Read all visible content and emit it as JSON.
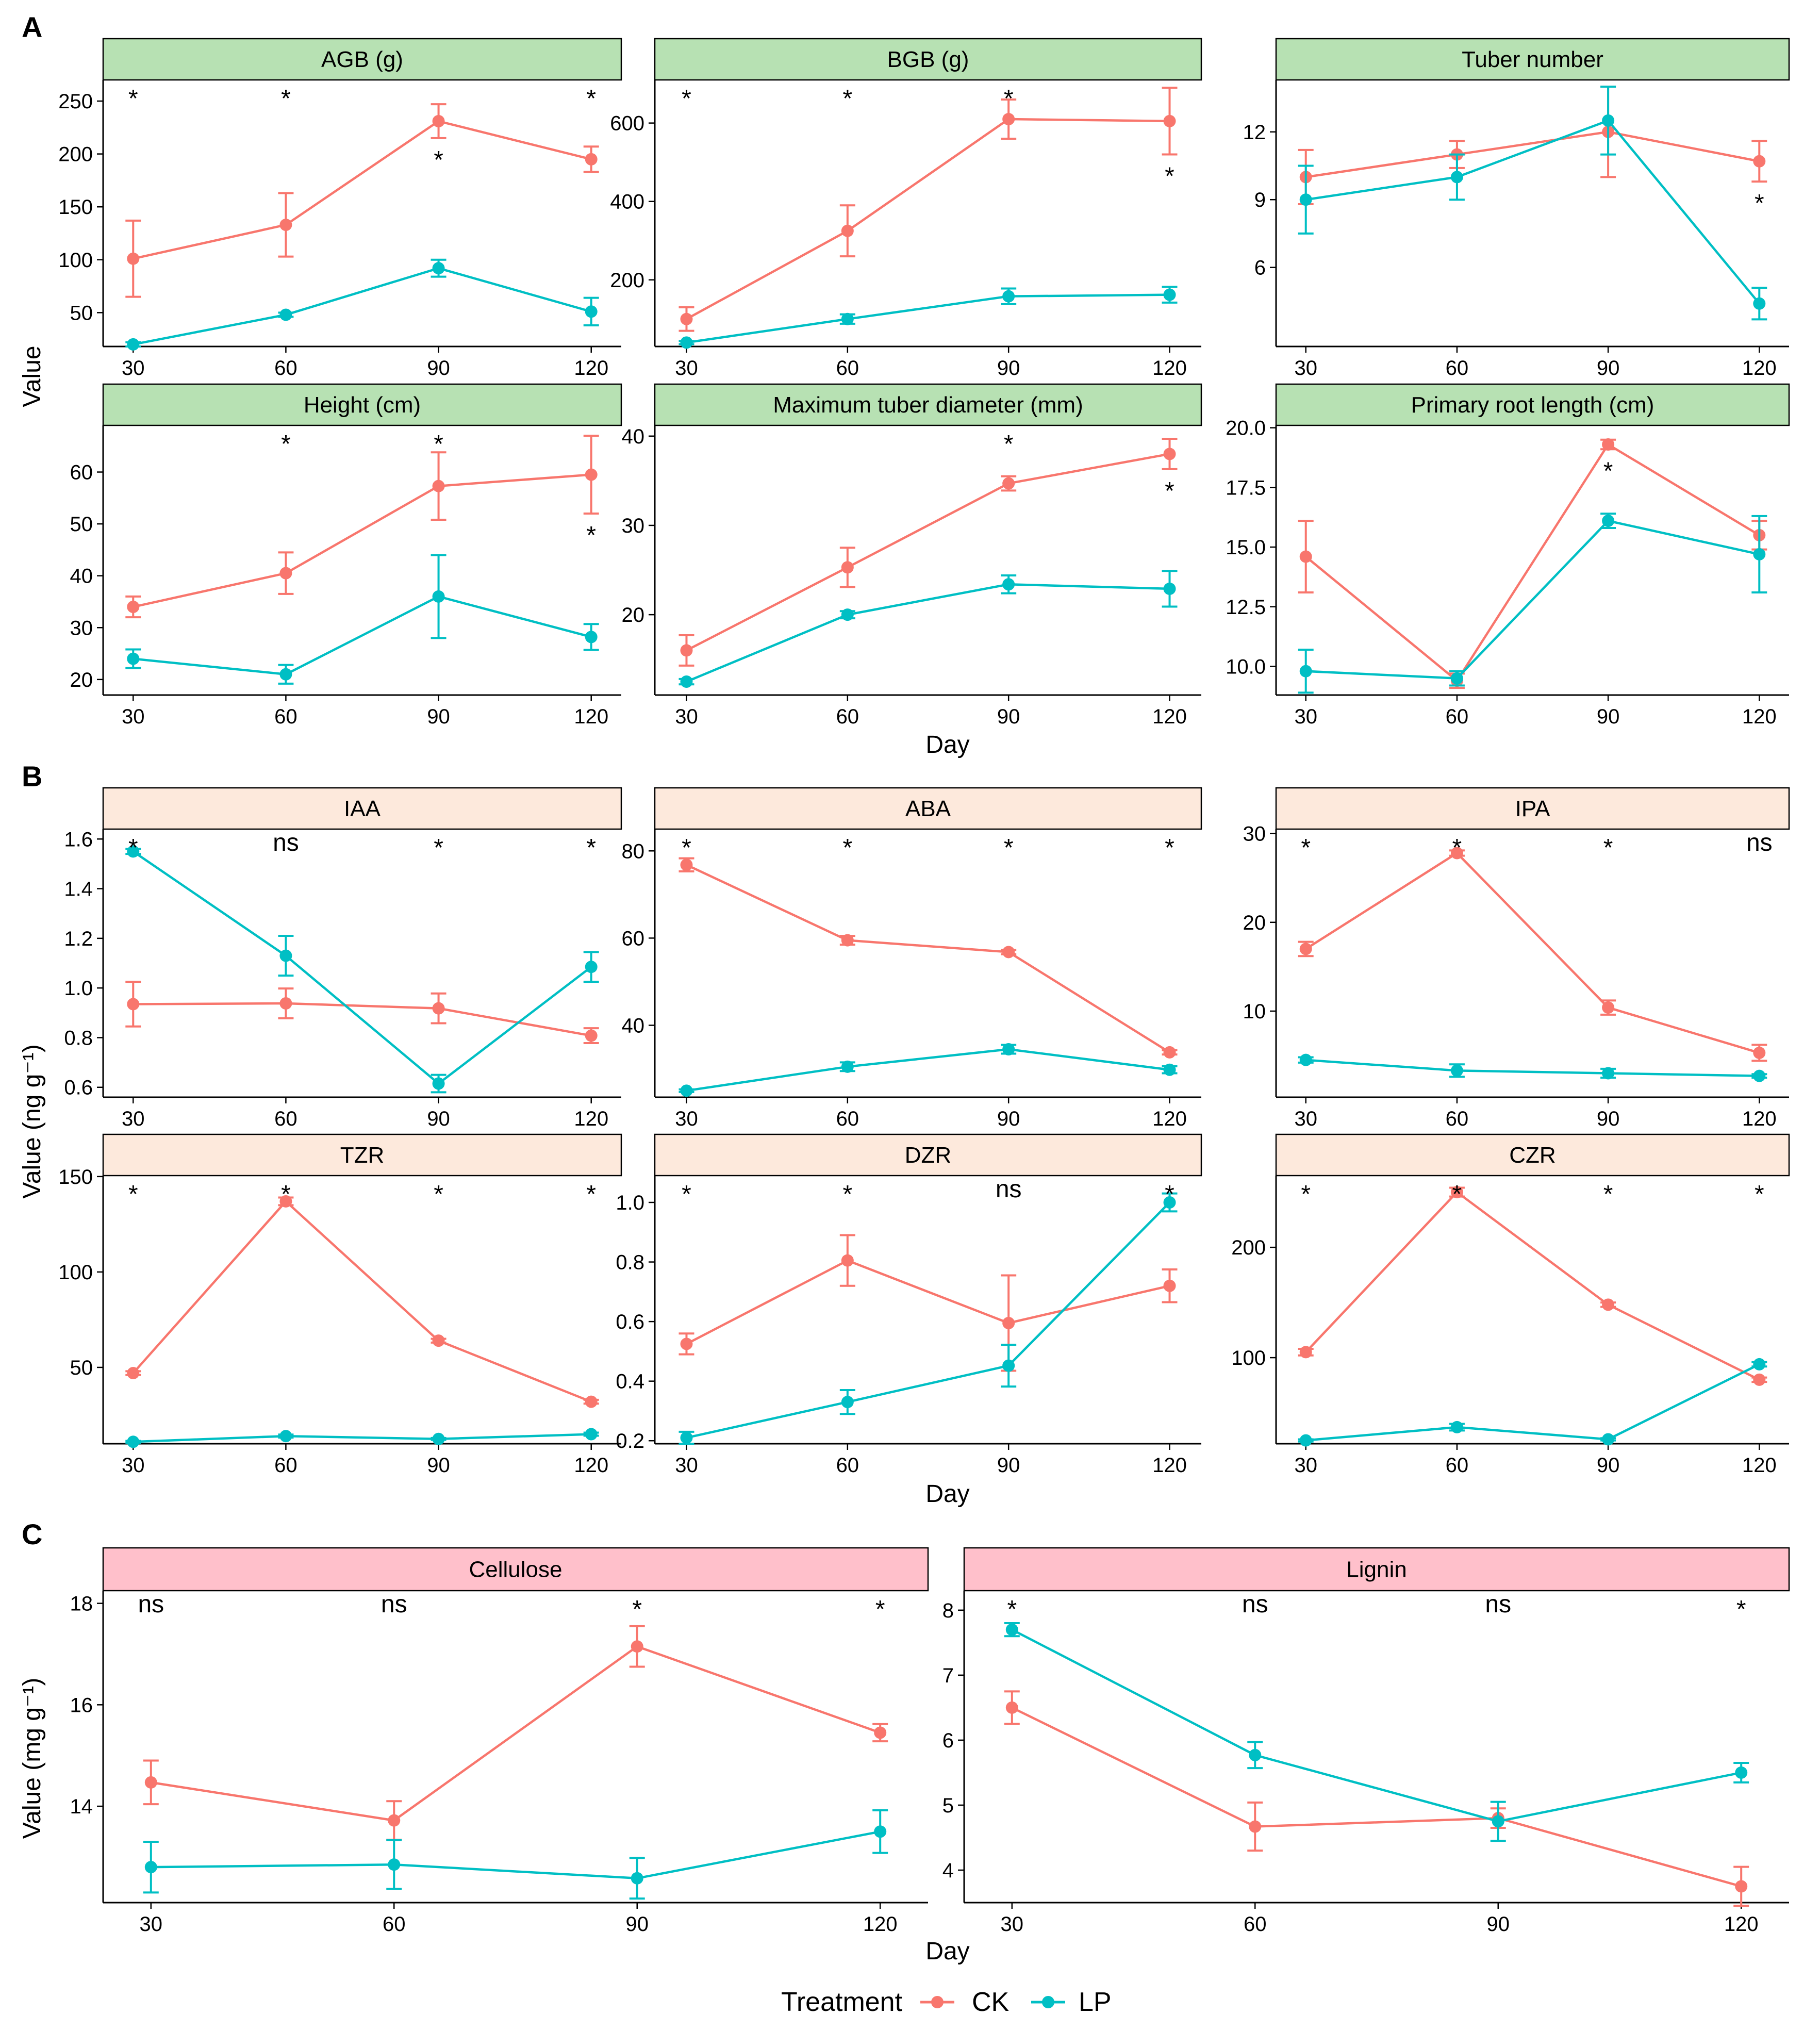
{
  "figure": {
    "panel_labels": [
      "A",
      "B",
      "C"
    ],
    "x_axis_title": "Day",
    "y_axis_titles": {
      "A": "Value",
      "B": "Value (ng g⁻¹)",
      "C": "Value (mg g⁻¹)"
    },
    "strip_colors": {
      "A": "#b7e1b3",
      "B": "#fde9dc",
      "C": "#ffc0cb"
    },
    "legend": {
      "title": "Treatment",
      "items": [
        {
          "label": "CK",
          "color": "#f8766d"
        },
        {
          "label": "LP",
          "color": "#00bfc4"
        }
      ]
    }
  },
  "chart_data": [
    {
      "group": "A",
      "type": "line",
      "title": "AGB (g)",
      "x": [
        30,
        60,
        90,
        120
      ],
      "xlabel": "",
      "ylabel": "Value",
      "ylim": [
        18,
        270
      ],
      "yticks": [
        50,
        100,
        150,
        200,
        250
      ],
      "series": [
        {
          "name": "CK",
          "values": [
            101,
            133,
            231,
            195
          ],
          "errors": [
            36,
            30,
            16,
            12
          ]
        },
        {
          "name": "LP",
          "values": [
            20,
            48,
            92,
            51
          ],
          "errors": [
            2,
            2,
            8,
            13
          ]
        }
      ],
      "sig_top": [
        "*",
        "*",
        "",
        "*"
      ],
      "sig_bottom": [
        "",
        "",
        "*",
        ""
      ]
    },
    {
      "group": "A",
      "type": "line",
      "title": "BGB (g)",
      "x": [
        30,
        60,
        90,
        120
      ],
      "xlabel": "",
      "ylabel": "",
      "ylim": [
        30,
        710
      ],
      "yticks": [
        200,
        400,
        600
      ],
      "series": [
        {
          "name": "CK",
          "values": [
            100,
            325,
            610,
            605
          ],
          "errors": [
            30,
            65,
            50,
            85
          ]
        },
        {
          "name": "LP",
          "values": [
            40,
            100,
            158,
            162
          ],
          "errors": [
            4,
            12,
            20,
            20
          ]
        }
      ],
      "sig_top": [
        "*",
        "*",
        "*",
        ""
      ],
      "sig_bottom": [
        "",
        "",
        "",
        "*"
      ]
    },
    {
      "group": "A",
      "type": "line",
      "title": "Tuber number",
      "x": [
        30,
        60,
        90,
        120
      ],
      "xlabel": "",
      "ylabel": "",
      "ylim": [
        2.5,
        14.3
      ],
      "yticks": [
        6,
        9,
        12
      ],
      "series": [
        {
          "name": "CK",
          "values": [
            10,
            11,
            12,
            10.7
          ],
          "errors": [
            1.2,
            0.6,
            2,
            0.9
          ]
        },
        {
          "name": "LP",
          "values": [
            9,
            10,
            12.5,
            4.4
          ],
          "errors": [
            1.5,
            1,
            1.5,
            0.7
          ]
        }
      ],
      "sig_top": [
        "",
        "",
        "",
        ""
      ],
      "sig_bottom": [
        "",
        "",
        "",
        "*"
      ]
    },
    {
      "group": "A",
      "type": "line",
      "title": "Height (cm)",
      "x": [
        30,
        60,
        90,
        120
      ],
      "xlabel": "Day",
      "ylabel": "Value",
      "ylim": [
        17,
        69
      ],
      "yticks": [
        20,
        30,
        40,
        50,
        60
      ],
      "series": [
        {
          "name": "CK",
          "values": [
            34,
            40.5,
            57.3,
            59.5
          ],
          "errors": [
            2,
            4,
            6.5,
            7.5
          ]
        },
        {
          "name": "LP",
          "values": [
            24,
            21,
            36,
            28.2
          ],
          "errors": [
            1.8,
            1.8,
            8,
            2.5
          ]
        }
      ],
      "sig_top": [
        "",
        "*",
        "*",
        ""
      ],
      "sig_bottom": [
        "",
        "",
        "",
        "*"
      ]
    },
    {
      "group": "A",
      "type": "line",
      "title": "Maximum tuber diameter (mm)",
      "x": [
        30,
        60,
        90,
        120
      ],
      "xlabel": "Day",
      "ylabel": "",
      "ylim": [
        11,
        41.2
      ],
      "yticks": [
        20,
        30,
        40
      ],
      "series": [
        {
          "name": "CK",
          "values": [
            16,
            25.3,
            34.7,
            38
          ],
          "errors": [
            1.7,
            2.2,
            0.8,
            1.7
          ]
        },
        {
          "name": "LP",
          "values": [
            12.5,
            20,
            23.4,
            22.9
          ],
          "errors": [
            0.3,
            0.4,
            1,
            2
          ]
        }
      ],
      "sig_top": [
        "",
        "",
        "*",
        ""
      ],
      "sig_bottom": [
        "",
        "",
        "",
        "*"
      ]
    },
    {
      "group": "A",
      "type": "line",
      "title": "Primary root length (cm)",
      "x": [
        30,
        60,
        90,
        120
      ],
      "xlabel": "Day",
      "ylabel": "",
      "ylim": [
        8.8,
        20.1
      ],
      "yticks": [
        10.0,
        12.5,
        15.0,
        17.5,
        20.0
      ],
      "series": [
        {
          "name": "CK",
          "values": [
            14.6,
            9.4,
            19.3,
            15.5
          ],
          "errors": [
            1.5,
            0.3,
            0.2,
            0.6
          ]
        },
        {
          "name": "LP",
          "values": [
            9.8,
            9.5,
            16.1,
            14.7
          ],
          "errors": [
            0.9,
            0.3,
            0.3,
            1.6
          ]
        }
      ],
      "sig_top": [
        "",
        "",
        "",
        ""
      ],
      "sig_bottom": [
        "",
        "",
        "*",
        ""
      ]
    },
    {
      "group": "B",
      "type": "line",
      "title": "IAA",
      "x": [
        30,
        60,
        90,
        120
      ],
      "xlabel": "",
      "ylabel": "Value (ng g⁻¹)",
      "ylim": [
        0.56,
        1.64
      ],
      "yticks": [
        0.6,
        0.8,
        1.0,
        1.2,
        1.4,
        1.6
      ],
      "series": [
        {
          "name": "CK",
          "values": [
            0.935,
            0.938,
            0.918,
            0.808
          ],
          "errors": [
            0.09,
            0.06,
            0.06,
            0.03
          ]
        },
        {
          "name": "LP",
          "values": [
            1.55,
            1.13,
            0.615,
            1.085
          ],
          "errors": [
            0.01,
            0.08,
            0.035,
            0.06
          ]
        }
      ],
      "sig_top": [
        "*",
        "ns",
        "*",
        "*"
      ],
      "sig_bottom": [
        "",
        "",
        "",
        ""
      ]
    },
    {
      "group": "B",
      "type": "line",
      "title": "ABA",
      "x": [
        30,
        60,
        90,
        120
      ],
      "xlabel": "",
      "ylabel": "",
      "ylim": [
        23.5,
        85
      ],
      "yticks": [
        40,
        60,
        80
      ],
      "series": [
        {
          "name": "CK",
          "values": [
            76.8,
            59.5,
            56.8,
            33.8
          ],
          "errors": [
            1.5,
            1,
            0.5,
            0.5
          ]
        },
        {
          "name": "LP",
          "values": [
            25,
            30.5,
            34.5,
            29.8
          ],
          "errors": [
            0.3,
            1,
            1,
            0.8
          ]
        }
      ],
      "sig_top": [
        "*",
        "*",
        "*",
        "*"
      ],
      "sig_bottom": [
        "",
        "",
        "",
        ""
      ]
    },
    {
      "group": "B",
      "type": "line",
      "title": "IPA",
      "x": [
        30,
        60,
        90,
        120
      ],
      "xlabel": "",
      "ylabel": "",
      "ylim": [
        0.3,
        30.5
      ],
      "yticks": [
        10,
        20,
        30
      ],
      "series": [
        {
          "name": "CK",
          "values": [
            17,
            27.8,
            10.4,
            5.3
          ],
          "errors": [
            0.8,
            0.3,
            0.8,
            0.9
          ]
        },
        {
          "name": "LP",
          "values": [
            4.5,
            3.3,
            3,
            2.7
          ],
          "errors": [
            0.3,
            0.7,
            0.5,
            0.2
          ]
        }
      ],
      "sig_top": [
        "*",
        "*",
        "*",
        "ns"
      ],
      "sig_bottom": [
        "",
        "",
        "",
        ""
      ]
    },
    {
      "group": "B",
      "type": "line",
      "title": "TZR",
      "x": [
        30,
        60,
        90,
        120
      ],
      "xlabel": "Day",
      "ylabel": "Value (ng g⁻¹)",
      "ylim": [
        10,
        150.5
      ],
      "yticks": [
        50,
        100,
        150
      ],
      "series": [
        {
          "name": "CK",
          "values": [
            47,
            137,
            64,
            32
          ],
          "errors": [
            1,
            2,
            1,
            1
          ]
        },
        {
          "name": "LP",
          "values": [
            11,
            14,
            12.5,
            15
          ],
          "errors": [
            0.5,
            0.8,
            0.5,
            0.8
          ]
        }
      ],
      "sig_top": [
        "*",
        "*",
        "*",
        "*"
      ],
      "sig_bottom": [
        "",
        "",
        "",
        ""
      ]
    },
    {
      "group": "B",
      "type": "line",
      "title": "DZR",
      "x": [
        30,
        60,
        90,
        120
      ],
      "xlabel": "Day",
      "ylabel": "",
      "ylim": [
        0.19,
        1.09
      ],
      "yticks": [
        0.2,
        0.4,
        0.6,
        0.8,
        1.0
      ],
      "series": [
        {
          "name": "CK",
          "values": [
            0.525,
            0.805,
            0.595,
            0.72
          ],
          "errors": [
            0.035,
            0.085,
            0.16,
            0.055
          ]
        },
        {
          "name": "LP",
          "values": [
            0.21,
            0.33,
            0.452,
            1.0
          ],
          "errors": [
            0.02,
            0.04,
            0.07,
            0.03
          ]
        }
      ],
      "sig_top": [
        "*",
        "*",
        "ns",
        "*"
      ],
      "sig_bottom": [
        "",
        "",
        "",
        ""
      ]
    },
    {
      "group": "B",
      "type": "line",
      "title": "CZR",
      "x": [
        30,
        60,
        90,
        120
      ],
      "xlabel": "Day",
      "ylabel": "",
      "ylim": [
        22,
        265
      ],
      "yticks": [
        100,
        200
      ],
      "series": [
        {
          "name": "CK",
          "values": [
            105,
            250,
            148,
            80
          ],
          "errors": [
            3,
            4,
            2,
            2
          ]
        },
        {
          "name": "LP",
          "values": [
            25,
            37,
            26,
            94
          ],
          "errors": [
            1,
            3,
            1,
            2
          ]
        }
      ],
      "sig_top": [
        "*",
        "*",
        "*",
        "*"
      ],
      "sig_bottom": [
        "",
        "",
        "",
        ""
      ]
    },
    {
      "group": "C",
      "type": "line",
      "title": "Cellulose",
      "x": [
        30,
        60,
        90,
        120
      ],
      "xlabel": "Day",
      "ylabel": "Value (mg g⁻¹)",
      "ylim": [
        12.1,
        18.25
      ],
      "yticks": [
        14,
        16,
        18
      ],
      "series": [
        {
          "name": "CK",
          "values": [
            14.47,
            13.72,
            17.15,
            15.45
          ],
          "errors": [
            0.43,
            0.38,
            0.4,
            0.17
          ]
        },
        {
          "name": "LP",
          "values": [
            12.8,
            12.85,
            12.58,
            13.5
          ],
          "errors": [
            0.5,
            0.48,
            0.4,
            0.42
          ]
        }
      ],
      "sig_top": [
        "ns",
        "ns",
        "*",
        "*"
      ],
      "sig_bottom": [
        "",
        "",
        "",
        ""
      ]
    },
    {
      "group": "C",
      "type": "line",
      "title": "Lignin",
      "x": [
        30,
        60,
        90,
        120
      ],
      "xlabel": "Day",
      "ylabel": "",
      "ylim": [
        3.5,
        8.3
      ],
      "yticks": [
        4,
        5,
        6,
        7,
        8
      ],
      "series": [
        {
          "name": "CK",
          "values": [
            6.5,
            4.67,
            4.8,
            3.75
          ],
          "errors": [
            0.25,
            0.37,
            0.15,
            0.3
          ]
        },
        {
          "name": "LP",
          "values": [
            7.7,
            5.77,
            4.75,
            5.5
          ],
          "errors": [
            0.1,
            0.2,
            0.3,
            0.15
          ]
        }
      ],
      "sig_top": [
        "*",
        "ns",
        "ns",
        "*"
      ],
      "sig_bottom": [
        "",
        "",
        "",
        ""
      ]
    }
  ]
}
